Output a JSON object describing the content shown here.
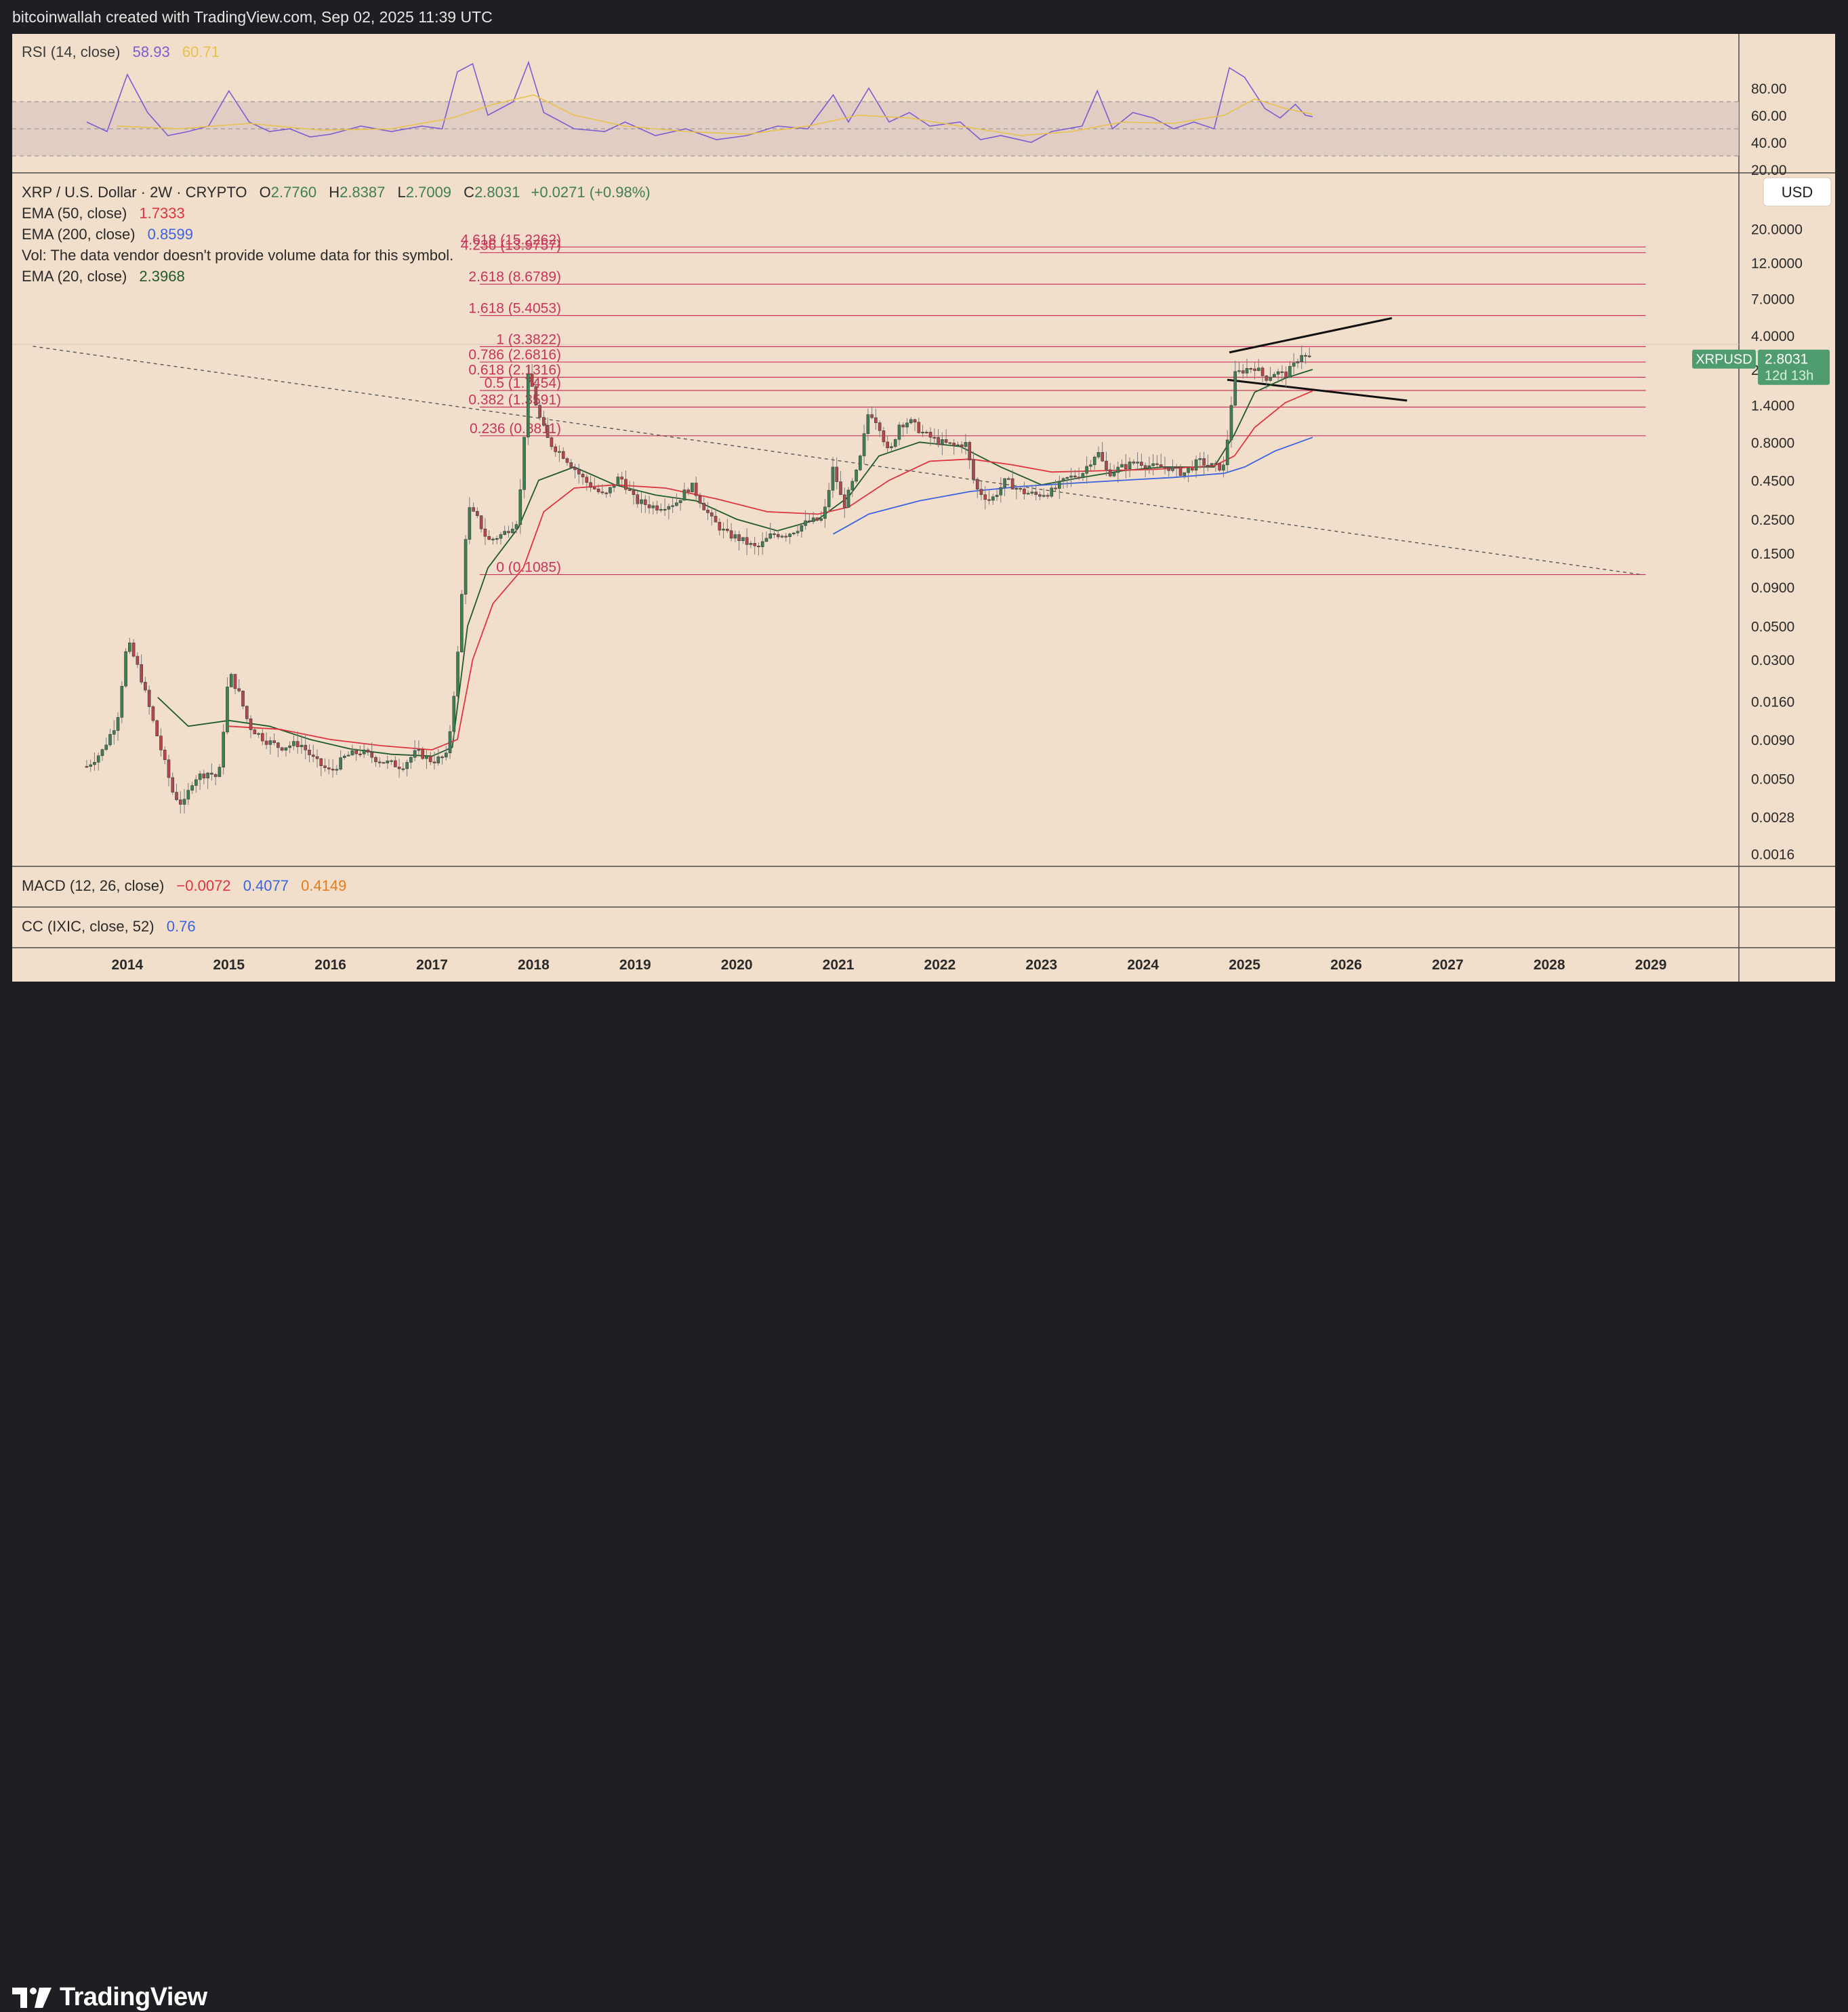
{
  "header": {
    "attribution": "bitcoinwallah created with TradingView.com, Sep 02, 2025 11:39 UTC"
  },
  "footer": {
    "brand": "TradingView"
  },
  "colors": {
    "background": "#f2dfcb",
    "frame": "#1e1f22",
    "grid_line": "#4a4a4a",
    "bull": "#3f7f53",
    "bear": "#b8454a",
    "fib": "#c9345a",
    "ema20": "#1f5a2a",
    "ema50": "#e0333f",
    "ema200": "#3a63e0",
    "rsi": "#7c5cd1",
    "rsi_ma": "#e8c14a",
    "rsi_band": "#dcc7c3",
    "macd": "#e0333f",
    "signal": "#3a63e0",
    "hist": "#e87a1a",
    "price_tag": "#4f9c6f"
  },
  "rsi_panel": {
    "legend": {
      "name": "RSI (14, close)",
      "value": "58.93",
      "ma_value": "60.71"
    },
    "axis_ticks": [
      "80.00",
      "60.00",
      "40.00",
      "20.00"
    ],
    "tick_values": [
      80,
      60,
      40,
      20
    ],
    "band": [
      30,
      70
    ],
    "midline": 50
  },
  "main_panel": {
    "legend": {
      "symbol": "XRP / U.S. Dollar · 2W · CRYPTO",
      "o_label": "O",
      "o_value": "2.7760",
      "h_label": "H",
      "h_value": "2.8387",
      "l_label": "L",
      "l_value": "2.7009",
      "c_label": "C",
      "c_value": "2.8031",
      "change": "+0.0271 (+0.98%)",
      "ema50_name": "EMA (50, close)",
      "ema50_value": "1.7333",
      "ema200_name": "EMA (200, close)",
      "ema200_value": "0.8599",
      "vol_note": "Vol: The data vendor doesn't provide volume data for this symbol.",
      "ema20_name": "EMA (20, close)",
      "ema20_value": "2.3968"
    },
    "currency_button": "USD",
    "axis_ticks": [
      "20.0000",
      "12.0000",
      "7.0000",
      "4.0000",
      "2.4000",
      "1.4000",
      "0.8000",
      "0.4500",
      "0.2500",
      "0.1500",
      "0.0900",
      "0.0500",
      "0.0300",
      "0.0160",
      "0.0090",
      "0.0050",
      "0.0028",
      "0.0016"
    ],
    "tick_values": [
      20,
      12,
      7,
      4,
      2.4,
      1.4,
      0.8,
      0.45,
      0.25,
      0.15,
      0.09,
      0.05,
      0.03,
      0.016,
      0.009,
      0.005,
      0.0028,
      0.0016
    ],
    "price_tag": {
      "symbol": "XRPUSD",
      "price": "2.8031",
      "countdown": "12d 13h"
    }
  },
  "macd_panel": {
    "legend": {
      "name": "MACD (12, 26, close)",
      "hist": "−0.0072",
      "macd": "0.4077",
      "signal": "0.4149"
    }
  },
  "cc_panel": {
    "legend": {
      "name": "CC (IXIC, close, 52)",
      "value": "0.76"
    }
  },
  "time_axis": {
    "labels": [
      "2014",
      "2015",
      "2016",
      "2017",
      "2018",
      "2019",
      "2020",
      "2021",
      "2022",
      "2023",
      "2024",
      "2025",
      "2026",
      "2027",
      "2028",
      "2029"
    ]
  },
  "chart_data": {
    "type": "candlestick",
    "symbol": "XRPUSD",
    "interval": "2W",
    "y_scale": "log",
    "ylim": [
      0.0013,
      26
    ],
    "xlim": [
      2013.0,
      2029.6
    ],
    "last": {
      "open": 2.776,
      "high": 2.8387,
      "low": 2.7009,
      "close": 2.8031
    },
    "fib_levels": [
      {
        "label": "4.618 (15.2262)",
        "ratio": 4.618,
        "price": 15.2262
      },
      {
        "label": "4.236 (13.9757)",
        "ratio": 4.236,
        "price": 13.9757
      },
      {
        "label": "2.618 (8.6789)",
        "ratio": 2.618,
        "price": 8.6789
      },
      {
        "label": "1.618 (5.4053)",
        "ratio": 1.618,
        "price": 5.4053
      },
      {
        "label": "1 (3.3822)",
        "ratio": 1,
        "price": 3.3822
      },
      {
        "label": "0.786 (2.6816)",
        "ratio": 0.786,
        "price": 2.6816
      },
      {
        "label": "0.618 (2.1316)",
        "ratio": 0.618,
        "price": 2.1316
      },
      {
        "label": "0.5 (1.7454)",
        "ratio": 0.5,
        "price": 1.7454
      },
      {
        "label": "0.382 (1.3591)",
        "ratio": 0.382,
        "price": 1.3591
      },
      {
        "label": "0.236 (0.8811)",
        "ratio": 0.236,
        "price": 0.8811
      },
      {
        "label": "0 (0.1085)",
        "ratio": 0,
        "price": 0.1085
      }
    ],
    "close_path": [
      [
        2013.6,
        0.006
      ],
      [
        2013.75,
        0.0075
      ],
      [
        2013.9,
        0.012
      ],
      [
        2014.0,
        0.04
      ],
      [
        2014.12,
        0.025
      ],
      [
        2014.25,
        0.012
      ],
      [
        2014.35,
        0.007
      ],
      [
        2014.45,
        0.004
      ],
      [
        2014.55,
        0.0033
      ],
      [
        2014.65,
        0.005
      ],
      [
        2014.8,
        0.0055
      ],
      [
        2014.9,
        0.005
      ],
      [
        2015.0,
        0.025
      ],
      [
        2015.1,
        0.018
      ],
      [
        2015.2,
        0.011
      ],
      [
        2015.35,
        0.009
      ],
      [
        2015.5,
        0.008
      ],
      [
        2015.7,
        0.0085
      ],
      [
        2015.85,
        0.0065
      ],
      [
        2016.0,
        0.0055
      ],
      [
        2016.15,
        0.007
      ],
      [
        2016.3,
        0.0075
      ],
      [
        2016.5,
        0.0065
      ],
      [
        2016.7,
        0.006
      ],
      [
        2016.85,
        0.0075
      ],
      [
        2017.0,
        0.0065
      ],
      [
        2017.15,
        0.007
      ],
      [
        2017.25,
        0.03
      ],
      [
        2017.35,
        0.3
      ],
      [
        2017.45,
        0.25
      ],
      [
        2017.55,
        0.18
      ],
      [
        2017.7,
        0.2
      ],
      [
        2017.85,
        0.25
      ],
      [
        2017.95,
        2.3
      ],
      [
        2018.05,
        1.2
      ],
      [
        2018.15,
        0.8
      ],
      [
        2018.3,
        0.65
      ],
      [
        2018.5,
        0.45
      ],
      [
        2018.7,
        0.35
      ],
      [
        2018.85,
        0.48
      ],
      [
        2019.0,
        0.33
      ],
      [
        2019.2,
        0.3
      ],
      [
        2019.4,
        0.32
      ],
      [
        2019.55,
        0.42
      ],
      [
        2019.75,
        0.25
      ],
      [
        2019.9,
        0.2
      ],
      [
        2020.0,
        0.19
      ],
      [
        2020.2,
        0.16
      ],
      [
        2020.35,
        0.2
      ],
      [
        2020.5,
        0.2
      ],
      [
        2020.7,
        0.24
      ],
      [
        2020.85,
        0.25
      ],
      [
        2020.95,
        0.55
      ],
      [
        2021.05,
        0.3
      ],
      [
        2021.2,
        0.55
      ],
      [
        2021.3,
        1.3
      ],
      [
        2021.4,
        1.05
      ],
      [
        2021.5,
        0.65
      ],
      [
        2021.6,
        1.05
      ],
      [
        2021.7,
        1.1
      ],
      [
        2021.85,
        0.9
      ],
      [
        2022.0,
        0.8
      ],
      [
        2022.15,
        0.75
      ],
      [
        2022.25,
        0.8
      ],
      [
        2022.35,
        0.4
      ],
      [
        2022.5,
        0.33
      ],
      [
        2022.65,
        0.45
      ],
      [
        2022.8,
        0.38
      ],
      [
        2022.95,
        0.36
      ],
      [
        2023.1,
        0.38
      ],
      [
        2023.25,
        0.46
      ],
      [
        2023.4,
        0.5
      ],
      [
        2023.55,
        0.7
      ],
      [
        2023.65,
        0.5
      ],
      [
        2023.8,
        0.55
      ],
      [
        2023.95,
        0.6
      ],
      [
        2024.1,
        0.55
      ],
      [
        2024.25,
        0.55
      ],
      [
        2024.4,
        0.5
      ],
      [
        2024.55,
        0.6
      ],
      [
        2024.7,
        0.55
      ],
      [
        2024.8,
        0.55
      ],
      [
        2024.85,
        1.1
      ],
      [
        2024.9,
        2.2
      ],
      [
        2025.0,
        2.4
      ],
      [
        2025.1,
        2.5
      ],
      [
        2025.2,
        2.1
      ],
      [
        2025.3,
        2.3
      ],
      [
        2025.4,
        2.2
      ],
      [
        2025.5,
        2.6
      ],
      [
        2025.55,
        3.1
      ],
      [
        2025.6,
        2.9
      ],
      [
        2025.67,
        2.8031
      ]
    ],
    "series": [
      {
        "name": "EMA (20, close)",
        "last": 2.3968,
        "points": [
          [
            2014.3,
            0.017
          ],
          [
            2014.6,
            0.011
          ],
          [
            2015.0,
            0.012
          ],
          [
            2015.4,
            0.011
          ],
          [
            2015.8,
            0.009
          ],
          [
            2016.2,
            0.0078
          ],
          [
            2016.6,
            0.0072
          ],
          [
            2017.0,
            0.007
          ],
          [
            2017.2,
            0.008
          ],
          [
            2017.35,
            0.05
          ],
          [
            2017.55,
            0.12
          ],
          [
            2017.85,
            0.22
          ],
          [
            2018.05,
            0.45
          ],
          [
            2018.4,
            0.55
          ],
          [
            2018.8,
            0.42
          ],
          [
            2019.2,
            0.36
          ],
          [
            2019.6,
            0.33
          ],
          [
            2020.0,
            0.25
          ],
          [
            2020.4,
            0.21
          ],
          [
            2020.8,
            0.25
          ],
          [
            2021.1,
            0.35
          ],
          [
            2021.4,
            0.65
          ],
          [
            2021.8,
            0.8
          ],
          [
            2022.2,
            0.75
          ],
          [
            2022.6,
            0.55
          ],
          [
            2023.0,
            0.42
          ],
          [
            2023.4,
            0.47
          ],
          [
            2023.8,
            0.52
          ],
          [
            2024.2,
            0.55
          ],
          [
            2024.7,
            0.55
          ],
          [
            2024.9,
            0.9
          ],
          [
            2025.1,
            1.7
          ],
          [
            2025.4,
            2.1
          ],
          [
            2025.67,
            2.3968
          ]
        ]
      },
      {
        "name": "EMA (50, close)",
        "last": 1.7333,
        "points": [
          [
            2015.0,
            0.011
          ],
          [
            2015.5,
            0.0105
          ],
          [
            2016.0,
            0.009
          ],
          [
            2016.5,
            0.0082
          ],
          [
            2017.0,
            0.0077
          ],
          [
            2017.25,
            0.009
          ],
          [
            2017.4,
            0.03
          ],
          [
            2017.6,
            0.07
          ],
          [
            2017.9,
            0.12
          ],
          [
            2018.1,
            0.28
          ],
          [
            2018.4,
            0.4
          ],
          [
            2018.8,
            0.42
          ],
          [
            2019.3,
            0.4
          ],
          [
            2019.8,
            0.34
          ],
          [
            2020.3,
            0.28
          ],
          [
            2020.8,
            0.27
          ],
          [
            2021.1,
            0.3
          ],
          [
            2021.5,
            0.45
          ],
          [
            2021.9,
            0.6
          ],
          [
            2022.3,
            0.62
          ],
          [
            2022.7,
            0.57
          ],
          [
            2023.1,
            0.51
          ],
          [
            2023.6,
            0.52
          ],
          [
            2024.1,
            0.53
          ],
          [
            2024.7,
            0.56
          ],
          [
            2024.9,
            0.65
          ],
          [
            2025.1,
            1.0
          ],
          [
            2025.4,
            1.45
          ],
          [
            2025.67,
            1.7333
          ]
        ]
      },
      {
        "name": "EMA (200, close)",
        "last": 0.8599,
        "points": [
          [
            2020.95,
            0.2
          ],
          [
            2021.3,
            0.27
          ],
          [
            2021.8,
            0.33
          ],
          [
            2022.3,
            0.38
          ],
          [
            2022.8,
            0.41
          ],
          [
            2023.3,
            0.43
          ],
          [
            2023.8,
            0.45
          ],
          [
            2024.3,
            0.47
          ],
          [
            2024.8,
            0.5
          ],
          [
            2025.0,
            0.55
          ],
          [
            2025.3,
            0.7
          ],
          [
            2025.67,
            0.8599
          ]
        ]
      }
    ],
    "trendlines": [
      {
        "style": "dashed",
        "points": [
          [
            2013.07,
            3.4
          ],
          [
            2028.9,
            0.1085
          ]
        ]
      },
      {
        "style": "solid",
        "points": [
          [
            2024.85,
            3.1
          ],
          [
            2026.45,
            5.2
          ]
        ]
      },
      {
        "style": "solid",
        "points": [
          [
            2024.83,
            2.05
          ],
          [
            2026.6,
            1.5
          ]
        ]
      }
    ],
    "rsi": {
      "last": 58.93,
      "ma_last": 60.71,
      "points": [
        [
          2013.6,
          55
        ],
        [
          2013.8,
          48
        ],
        [
          2014.0,
          90
        ],
        [
          2014.2,
          62
        ],
        [
          2014.4,
          45
        ],
        [
          2014.6,
          48
        ],
        [
          2014.8,
          52
        ],
        [
          2015.0,
          78
        ],
        [
          2015.2,
          55
        ],
        [
          2015.4,
          48
        ],
        [
          2015.6,
          50
        ],
        [
          2015.8,
          44
        ],
        [
          2016.0,
          46
        ],
        [
          2016.3,
          52
        ],
        [
          2016.6,
          48
        ],
        [
          2016.9,
          52
        ],
        [
          2017.1,
          50
        ],
        [
          2017.25,
          92
        ],
        [
          2017.4,
          98
        ],
        [
          2017.55,
          60
        ],
        [
          2017.8,
          70
        ],
        [
          2017.95,
          99
        ],
        [
          2018.1,
          62
        ],
        [
          2018.4,
          50
        ],
        [
          2018.7,
          48
        ],
        [
          2018.9,
          55
        ],
        [
          2019.2,
          45
        ],
        [
          2019.5,
          50
        ],
        [
          2019.8,
          42
        ],
        [
          2020.1,
          45
        ],
        [
          2020.4,
          52
        ],
        [
          2020.7,
          50
        ],
        [
          2020.95,
          75
        ],
        [
          2021.1,
          55
        ],
        [
          2021.3,
          80
        ],
        [
          2021.5,
          55
        ],
        [
          2021.7,
          62
        ],
        [
          2021.9,
          52
        ],
        [
          2022.2,
          55
        ],
        [
          2022.4,
          42
        ],
        [
          2022.6,
          45
        ],
        [
          2022.9,
          40
        ],
        [
          2023.1,
          48
        ],
        [
          2023.4,
          52
        ],
        [
          2023.55,
          78
        ],
        [
          2023.7,
          50
        ],
        [
          2023.9,
          62
        ],
        [
          2024.1,
          58
        ],
        [
          2024.3,
          50
        ],
        [
          2024.5,
          55
        ],
        [
          2024.7,
          50
        ],
        [
          2024.85,
          95
        ],
        [
          2025.0,
          88
        ],
        [
          2025.2,
          65
        ],
        [
          2025.35,
          58
        ],
        [
          2025.5,
          68
        ],
        [
          2025.6,
          60
        ],
        [
          2025.67,
          58.93
        ]
      ],
      "ma_points": [
        [
          2013.9,
          52
        ],
        [
          2014.5,
          50
        ],
        [
          2015.2,
          54
        ],
        [
          2015.9,
          49
        ],
        [
          2016.6,
          50
        ],
        [
          2017.2,
          58
        ],
        [
          2017.6,
          68
        ],
        [
          2018.0,
          75
        ],
        [
          2018.4,
          60
        ],
        [
          2018.9,
          52
        ],
        [
          2019.5,
          48
        ],
        [
          2020.1,
          46
        ],
        [
          2020.7,
          52
        ],
        [
          2021.2,
          60
        ],
        [
          2021.7,
          58
        ],
        [
          2022.2,
          52
        ],
        [
          2022.8,
          45
        ],
        [
          2023.3,
          48
        ],
        [
          2023.8,
          55
        ],
        [
          2024.3,
          54
        ],
        [
          2024.8,
          60
        ],
        [
          2025.1,
          72
        ],
        [
          2025.4,
          65
        ],
        [
          2025.67,
          60.71
        ]
      ]
    }
  }
}
